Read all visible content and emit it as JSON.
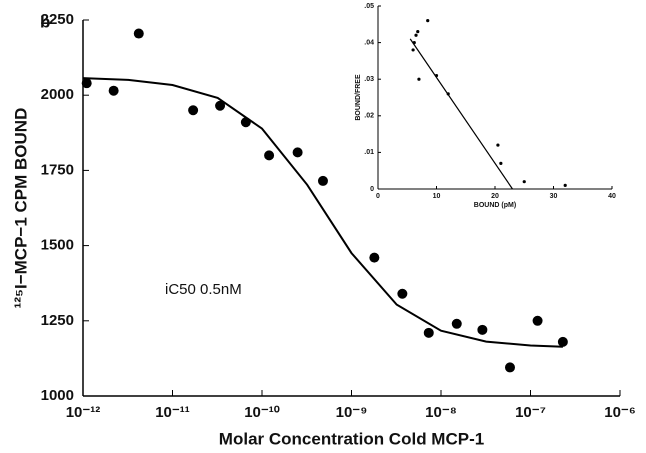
{
  "chart_data": [
    {
      "type": "scatter",
      "panel": "b",
      "xscale": "log",
      "xlabel": "Molar Concentration Cold MCP-1",
      "ylabel": "¹²⁵I−MCP−1  CPM  BOUND",
      "annotation": "iC50  0.5nM",
      "color": "#000000",
      "x": [
        1.1e-12,
        2.2e-12,
        4.2e-12,
        1.7e-11,
        3.4e-11,
        6.6e-11,
        1.2e-10,
        2.5e-10,
        4.8e-10,
        1.8e-09,
        3.7e-09,
        7.3e-09,
        1.5e-08,
        2.9e-08,
        5.9e-08,
        1.2e-07,
        2.3e-07
      ],
      "values": [
        2040,
        2015,
        2205,
        1950,
        1965,
        1910,
        1800,
        1810,
        1715,
        1460,
        1340,
        1210,
        1240,
        1220,
        1095,
        1250,
        1180
      ],
      "curve": {
        "x": [
          1e-12,
          3.2e-12,
          1e-11,
          3.2e-11,
          1e-10,
          3.2e-10,
          1e-09,
          3.2e-09,
          1e-08,
          3.2e-08,
          1e-07,
          2.3e-07
        ],
        "values": [
          2057,
          2051,
          2034,
          1991,
          1889,
          1702,
          1475,
          1304,
          1217,
          1181,
          1168,
          1164
        ]
      },
      "xlim": [
        1e-12,
        1e-06
      ],
      "xticks": [
        {
          "value": 1e-12,
          "label": "10⁻¹²"
        },
        {
          "value": 1e-11,
          "label": "10⁻¹¹"
        },
        {
          "value": 1e-10,
          "label": "10⁻¹⁰"
        },
        {
          "value": 1e-09,
          "label": "10⁻⁹"
        },
        {
          "value": 1e-08,
          "label": "10⁻⁸"
        },
        {
          "value": 1e-07,
          "label": "10⁻⁷"
        },
        {
          "value": 1e-06,
          "label": "10⁻⁶"
        }
      ],
      "ylim": [
        1000,
        2250
      ],
      "yticks": [
        1000,
        1250,
        1500,
        1750,
        2000,
        2250
      ]
    },
    {
      "type": "scatter",
      "xscale": "linear",
      "xlabel": "BOUND (pM)",
      "ylabel": "BOUND/FREE",
      "color": "#000000",
      "x": [
        6,
        6.2,
        6.5,
        6.8,
        7,
        8.5,
        10,
        12,
        20.5,
        21,
        25,
        32
      ],
      "values": [
        0.038,
        0.04,
        0.042,
        0.043,
        0.03,
        0.046,
        0.031,
        0.026,
        0.012,
        0.007,
        0.002,
        0.001
      ],
      "curve": {
        "x": [
          5.5,
          23
        ],
        "values": [
          0.041,
          0
        ]
      },
      "xlim": [
        0,
        40
      ],
      "xticks": [
        0,
        10,
        20,
        30,
        40
      ],
      "ylim": [
        0,
        0.05
      ],
      "yticks": [
        0,
        {
          "value": 0.01,
          "label": ".01"
        },
        {
          "value": 0.02,
          "label": ".02"
        },
        {
          "value": 0.03,
          "label": ".03"
        },
        {
          "value": 0.04,
          "label": ".04"
        },
        {
          "value": 0.05,
          "label": ".05"
        }
      ]
    }
  ]
}
